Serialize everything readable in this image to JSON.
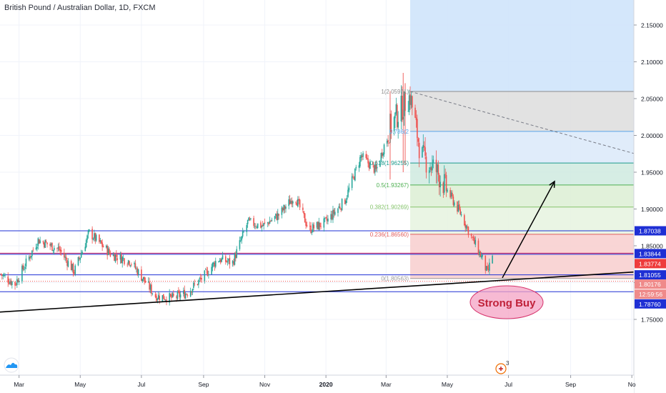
{
  "chart_data": {
    "type": "candlestick",
    "title": "British Pound / Australian Dollar, 1D, FXCM",
    "xlabel": "",
    "ylabel": "",
    "x_tick_labels": [
      "Mar",
      "May",
      "Jul",
      "Sep",
      "Nov",
      "2020",
      "Mar",
      "May",
      "Jul",
      "Sep",
      "No"
    ],
    "y_tick_labels": [
      "2.15000",
      "2.10000",
      "2.05000",
      "2.00000",
      "1.95000",
      "1.90000",
      "1.85000",
      "1.80000",
      "1.75000"
    ],
    "ylim": [
      1.71,
      2.18
    ],
    "grid": true,
    "price_path": [
      {
        "date": "2019-02-10",
        "price": 1.812
      },
      {
        "date": "2019-02-25",
        "price": 1.798
      },
      {
        "date": "2019-03-20",
        "price": 1.858
      },
      {
        "date": "2019-04-10",
        "price": 1.845
      },
      {
        "date": "2019-04-25",
        "price": 1.815
      },
      {
        "date": "2019-05-10",
        "price": 1.868
      },
      {
        "date": "2019-06-01",
        "price": 1.838
      },
      {
        "date": "2019-06-20",
        "price": 1.829
      },
      {
        "date": "2019-07-15",
        "price": 1.782
      },
      {
        "date": "2019-08-01",
        "price": 1.779
      },
      {
        "date": "2019-08-15",
        "price": 1.786
      },
      {
        "date": "2019-09-01",
        "price": 1.808
      },
      {
        "date": "2019-09-15",
        "price": 1.832
      },
      {
        "date": "2019-09-30",
        "price": 1.827
      },
      {
        "date": "2019-10-15",
        "price": 1.882
      },
      {
        "date": "2019-10-30",
        "price": 1.877
      },
      {
        "date": "2019-11-15",
        "price": 1.892
      },
      {
        "date": "2019-12-01",
        "price": 1.918
      },
      {
        "date": "2019-12-15",
        "price": 1.872
      },
      {
        "date": "2020-01-01",
        "price": 1.882
      },
      {
        "date": "2020-01-20",
        "price": 1.912
      },
      {
        "date": "2020-02-05",
        "price": 1.972
      },
      {
        "date": "2020-02-20",
        "price": 1.952
      },
      {
        "date": "2020-03-05",
        "price": 2.012
      },
      {
        "date": "2020-03-20",
        "price": 2.045
      },
      {
        "date": "2020-03-25",
        "price": 2.053
      },
      {
        "date": "2020-04-05",
        "price": 1.972
      },
      {
        "date": "2020-04-20",
        "price": 1.952
      },
      {
        "date": "2020-05-01",
        "price": 1.925
      },
      {
        "date": "2020-05-15",
        "price": 1.892
      },
      {
        "date": "2020-05-25",
        "price": 1.862
      },
      {
        "date": "2020-06-05",
        "price": 1.832
      },
      {
        "date": "2020-06-10",
        "price": 1.812
      },
      {
        "date": "2020-06-15",
        "price": 1.838
      }
    ],
    "horizontal_levels": [
      {
        "price": 1.87038,
        "label": "1.87038",
        "color": "#1e2fd4"
      },
      {
        "price": 1.83844,
        "label": "1.83844",
        "color": "#1e2fd4"
      },
      {
        "price": 1.81055,
        "label": "1.81055",
        "color": "#1e2fd4"
      },
      {
        "price": 1.7876,
        "label": "1.78760",
        "color": "#1e2fd4"
      }
    ],
    "fibonacci": [
      {
        "ratio": "1",
        "price": 2.05971,
        "label": "1(2.05971)",
        "color": "#8c8c8c"
      },
      {
        "ratio": "0.786",
        "price": 2.00546,
        "label": "0.786(2",
        "color": "#5aa4e8"
      },
      {
        "ratio": "0.618",
        "price": 1.96255,
        "label": "0.618(1.96255)",
        "color": "#1c9a8c"
      },
      {
        "ratio": "0.5",
        "price": 1.93267,
        "label": "0.5(1.93267)",
        "color": "#4caf50"
      },
      {
        "ratio": "0.382",
        "price": 1.90269,
        "label": "0.382(1.90269)",
        "color": "#85c46a"
      },
      {
        "ratio": "0.236",
        "price": 1.8656,
        "label": "0.236(1.86560)",
        "color": "#e15d5d"
      },
      {
        "ratio": "0",
        "price": 1.80563,
        "label": "0(1.80563)",
        "color": "#9a9a9a"
      }
    ],
    "price_badges": [
      {
        "label": "1.87038",
        "color": "#1e2fd4"
      },
      {
        "label": "1.83844",
        "color": "#1e2fd4"
      },
      {
        "label": "1.83774",
        "color": "#ee3b3b"
      },
      {
        "label": "1.81055",
        "color": "#1e2fd4"
      },
      {
        "label": "1.80176",
        "color": "#ef8a8a"
      },
      {
        "label": "12:59:56",
        "color": "#ef8a8a"
      },
      {
        "label": "1.78760",
        "color": "#1e2fd4"
      }
    ],
    "annotation": {
      "text": "Strong Buy",
      "color": "#c0223a",
      "fill": "#f4a3c4"
    },
    "colors": {
      "up": "#26a69a",
      "down": "#ef5350",
      "trendline": "#000000",
      "arrow": "#000000",
      "target_box": "#cfe4fb",
      "stop_box": "#f9c7c7"
    }
  },
  "ui": {
    "bottom_badge": "3"
  }
}
